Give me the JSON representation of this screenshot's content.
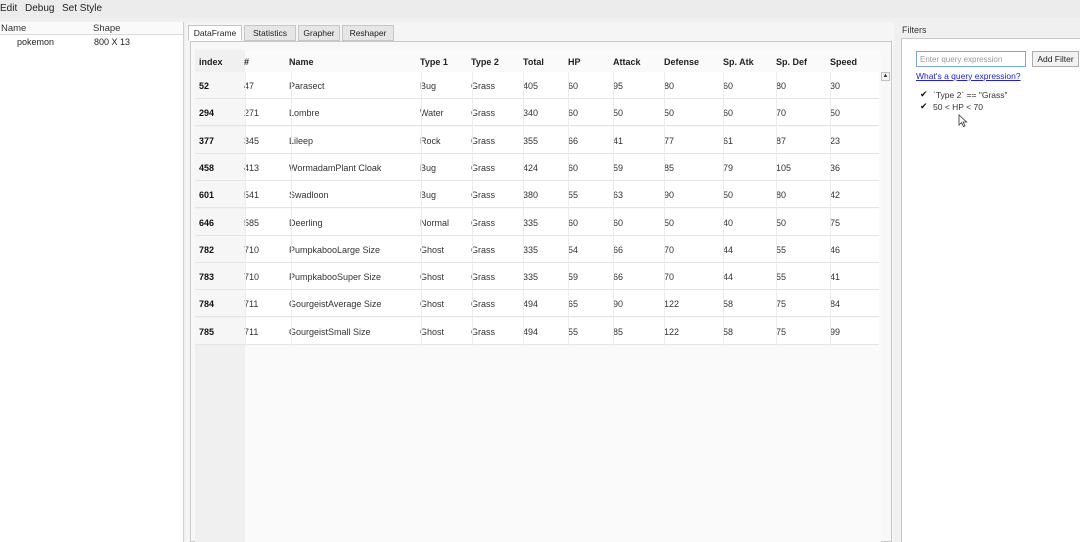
{
  "menu": [
    "Edit",
    "Debug",
    "Set Style"
  ],
  "left_panel": {
    "headers": [
      "Name",
      "Shape"
    ],
    "rows": [
      {
        "name": "pokemon",
        "shape": "800 X 13"
      }
    ]
  },
  "tabs": [
    "DataFrame",
    "Statistics",
    "Grapher",
    "Reshaper"
  ],
  "table": {
    "columns": [
      "index",
      "#",
      "Name",
      "Type 1",
      "Type 2",
      "Total",
      "HP",
      "Attack",
      "Defense",
      "Sp. Atk",
      "Sp. Def",
      "Speed"
    ],
    "rows": [
      [
        "52",
        "47",
        "Parasect",
        "Bug",
        "Grass",
        "405",
        "60",
        "95",
        "80",
        "60",
        "80",
        "30"
      ],
      [
        "294",
        "271",
        "Lombre",
        "Water",
        "Grass",
        "340",
        "60",
        "50",
        "50",
        "60",
        "70",
        "50"
      ],
      [
        "377",
        "345",
        "Lileep",
        "Rock",
        "Grass",
        "355",
        "66",
        "41",
        "77",
        "61",
        "87",
        "23"
      ],
      [
        "458",
        "413",
        "WormadamPlant Cloak",
        "Bug",
        "Grass",
        "424",
        "60",
        "59",
        "85",
        "79",
        "105",
        "36"
      ],
      [
        "601",
        "541",
        "Swadloon",
        "Bug",
        "Grass",
        "380",
        "55",
        "63",
        "90",
        "50",
        "80",
        "42"
      ],
      [
        "646",
        "585",
        "Deerling",
        "Normal",
        "Grass",
        "335",
        "60",
        "60",
        "50",
        "40",
        "50",
        "75"
      ],
      [
        "782",
        "710",
        "PumpkabooLarge Size",
        "Ghost",
        "Grass",
        "335",
        "54",
        "66",
        "70",
        "44",
        "55",
        "46"
      ],
      [
        "783",
        "710",
        "PumpkabooSuper Size",
        "Ghost",
        "Grass",
        "335",
        "59",
        "66",
        "70",
        "44",
        "55",
        "41"
      ],
      [
        "784",
        "711",
        "GourgeistAverage Size",
        "Ghost",
        "Grass",
        "494",
        "65",
        "90",
        "122",
        "58",
        "75",
        "84"
      ],
      [
        "785",
        "711",
        "GourgeistSmall Size",
        "Ghost",
        "Grass",
        "494",
        "55",
        "85",
        "122",
        "58",
        "75",
        "99"
      ]
    ]
  },
  "filters": {
    "title": "Filters",
    "input_placeholder": "Enter query expression",
    "add_button": "Add Filter",
    "help_link": "What's a query expression?",
    "items": [
      {
        "checked": true,
        "expression": "`Type 2` == \"Grass\""
      },
      {
        "checked": true,
        "expression": "50 < HP < 70"
      }
    ]
  },
  "icons": {
    "scroll_up": "scroll-up-arrow-icon",
    "check": "checkmark-icon",
    "cursor": "mouse-pointer-icon"
  }
}
